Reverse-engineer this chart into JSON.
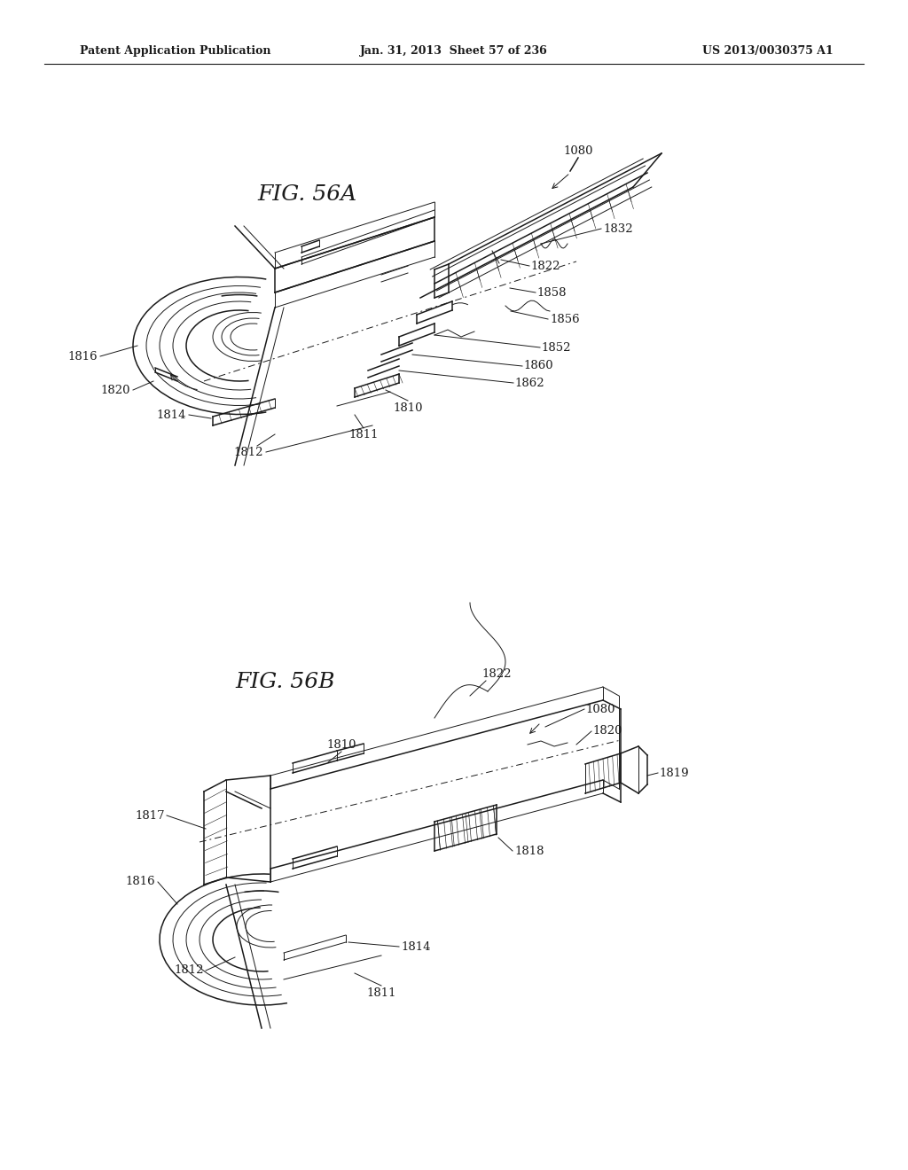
{
  "bg_color": "#ffffff",
  "text_color": "#1a1a1a",
  "header_left": "Patent Application Publication",
  "header_center": "Jan. 31, 2013  Sheet 57 of 236",
  "header_right": "US 2013/0030375 A1",
  "fig_label_A": "FIG. 56A",
  "fig_label_B": "FIG. 56B",
  "label_fontsize": 9.5,
  "figlabel_fontsize": 18,
  "header_fontsize": 9
}
